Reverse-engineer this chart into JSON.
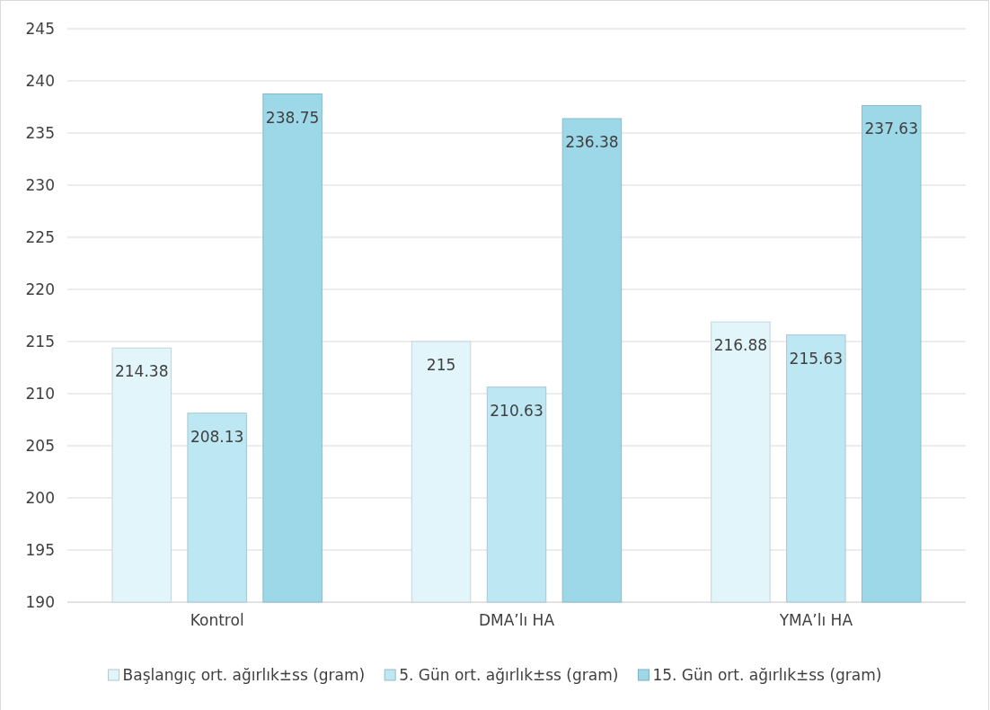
{
  "chart_data": {
    "type": "bar",
    "categories": [
      "Kontrol",
      "DMA’lı HA",
      "YMA’lı HA"
    ],
    "series": [
      {
        "name": "Başlangıç ort. ağırlık±ss (gram)",
        "color": "#e2f5fb",
        "values": [
          214.38,
          215,
          216.88
        ]
      },
      {
        "name": "5. Gün ort. ağırlık±ss (gram)",
        "color": "#bde7f2",
        "values": [
          208.13,
          210.63,
          215.63
        ]
      },
      {
        "name": "15. Gün ort. ağırlık±ss (gram)",
        "color": "#9dd8e8",
        "values": [
          238.75,
          236.38,
          237.63
        ]
      }
    ],
    "ylim": [
      190,
      245
    ],
    "yticks": [
      190,
      195,
      200,
      205,
      210,
      215,
      220,
      225,
      230,
      235,
      240,
      245
    ],
    "grid": "y",
    "legend": "bottom",
    "data_labels": true
  }
}
